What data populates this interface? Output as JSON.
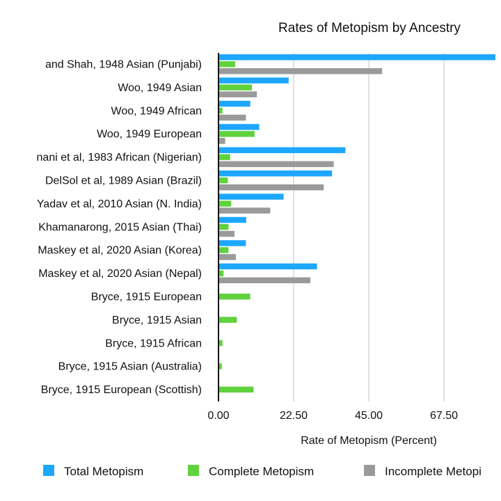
{
  "chart_data": {
    "type": "bar",
    "orientation": "horizontal",
    "title": "Rates of Metopism by Ancestry",
    "xlabel": "Rate of Metopism (Percent)",
    "ylabel": "",
    "xlim": [
      0,
      90
    ],
    "xticks": [
      "0.00",
      "22.50",
      "45.00",
      "67.50"
    ],
    "xtick_values": [
      0,
      22.5,
      45,
      67.5
    ],
    "grid": "vertical",
    "legend_position": "bottom",
    "categories": [
      "and Shah, 1948  Asian (Punjabi)",
      "Woo, 1949 Asian",
      "Woo, 1949 African",
      "Woo, 1949 European",
      "nani et al, 1983 African (Nigerian)",
      "DelSol et al, 1989 Asian (Brazil)",
      "Yadav et al, 2010 Asian (N. India)",
      "Khamanarong, 2015 Asian (Thai)",
      "Maskey et al, 2020 Asian (Korea)",
      "Maskey et al, 2020 Asian (Nepal)",
      "Bryce, 1915 European",
      "Bryce, 1915 Asian",
      "Bryce, 1915 African",
      "Bryce, 1915 Asian (Australia)",
      "Bryce, 1915 European (Scottish)"
    ],
    "series": [
      {
        "name": "Total Metopism",
        "color": "#1ea7ff",
        "values": [
          91.0,
          21.0,
          9.5,
          12.2,
          38.0,
          34.0,
          19.5,
          8.3,
          8.2,
          29.5,
          null,
          null,
          null,
          null,
          null
        ]
      },
      {
        "name": "Complete Metopism",
        "color": "#5fd23e",
        "values": [
          5.0,
          10.0,
          1.2,
          10.8,
          3.5,
          2.8,
          3.8,
          3.0,
          3.0,
          1.5,
          9.5,
          5.5,
          1.2,
          1.0,
          10.5
        ]
      },
      {
        "name": "Incomplete Metopism",
        "color": "#9a9a9a",
        "values": [
          49.0,
          11.5,
          8.2,
          2.0,
          34.5,
          31.5,
          15.5,
          4.8,
          5.2,
          27.5,
          null,
          null,
          null,
          null,
          null
        ]
      }
    ],
    "legend_labels": [
      "Total Metopism",
      "Complete Metopism",
      "Incomplete Metopi"
    ]
  }
}
